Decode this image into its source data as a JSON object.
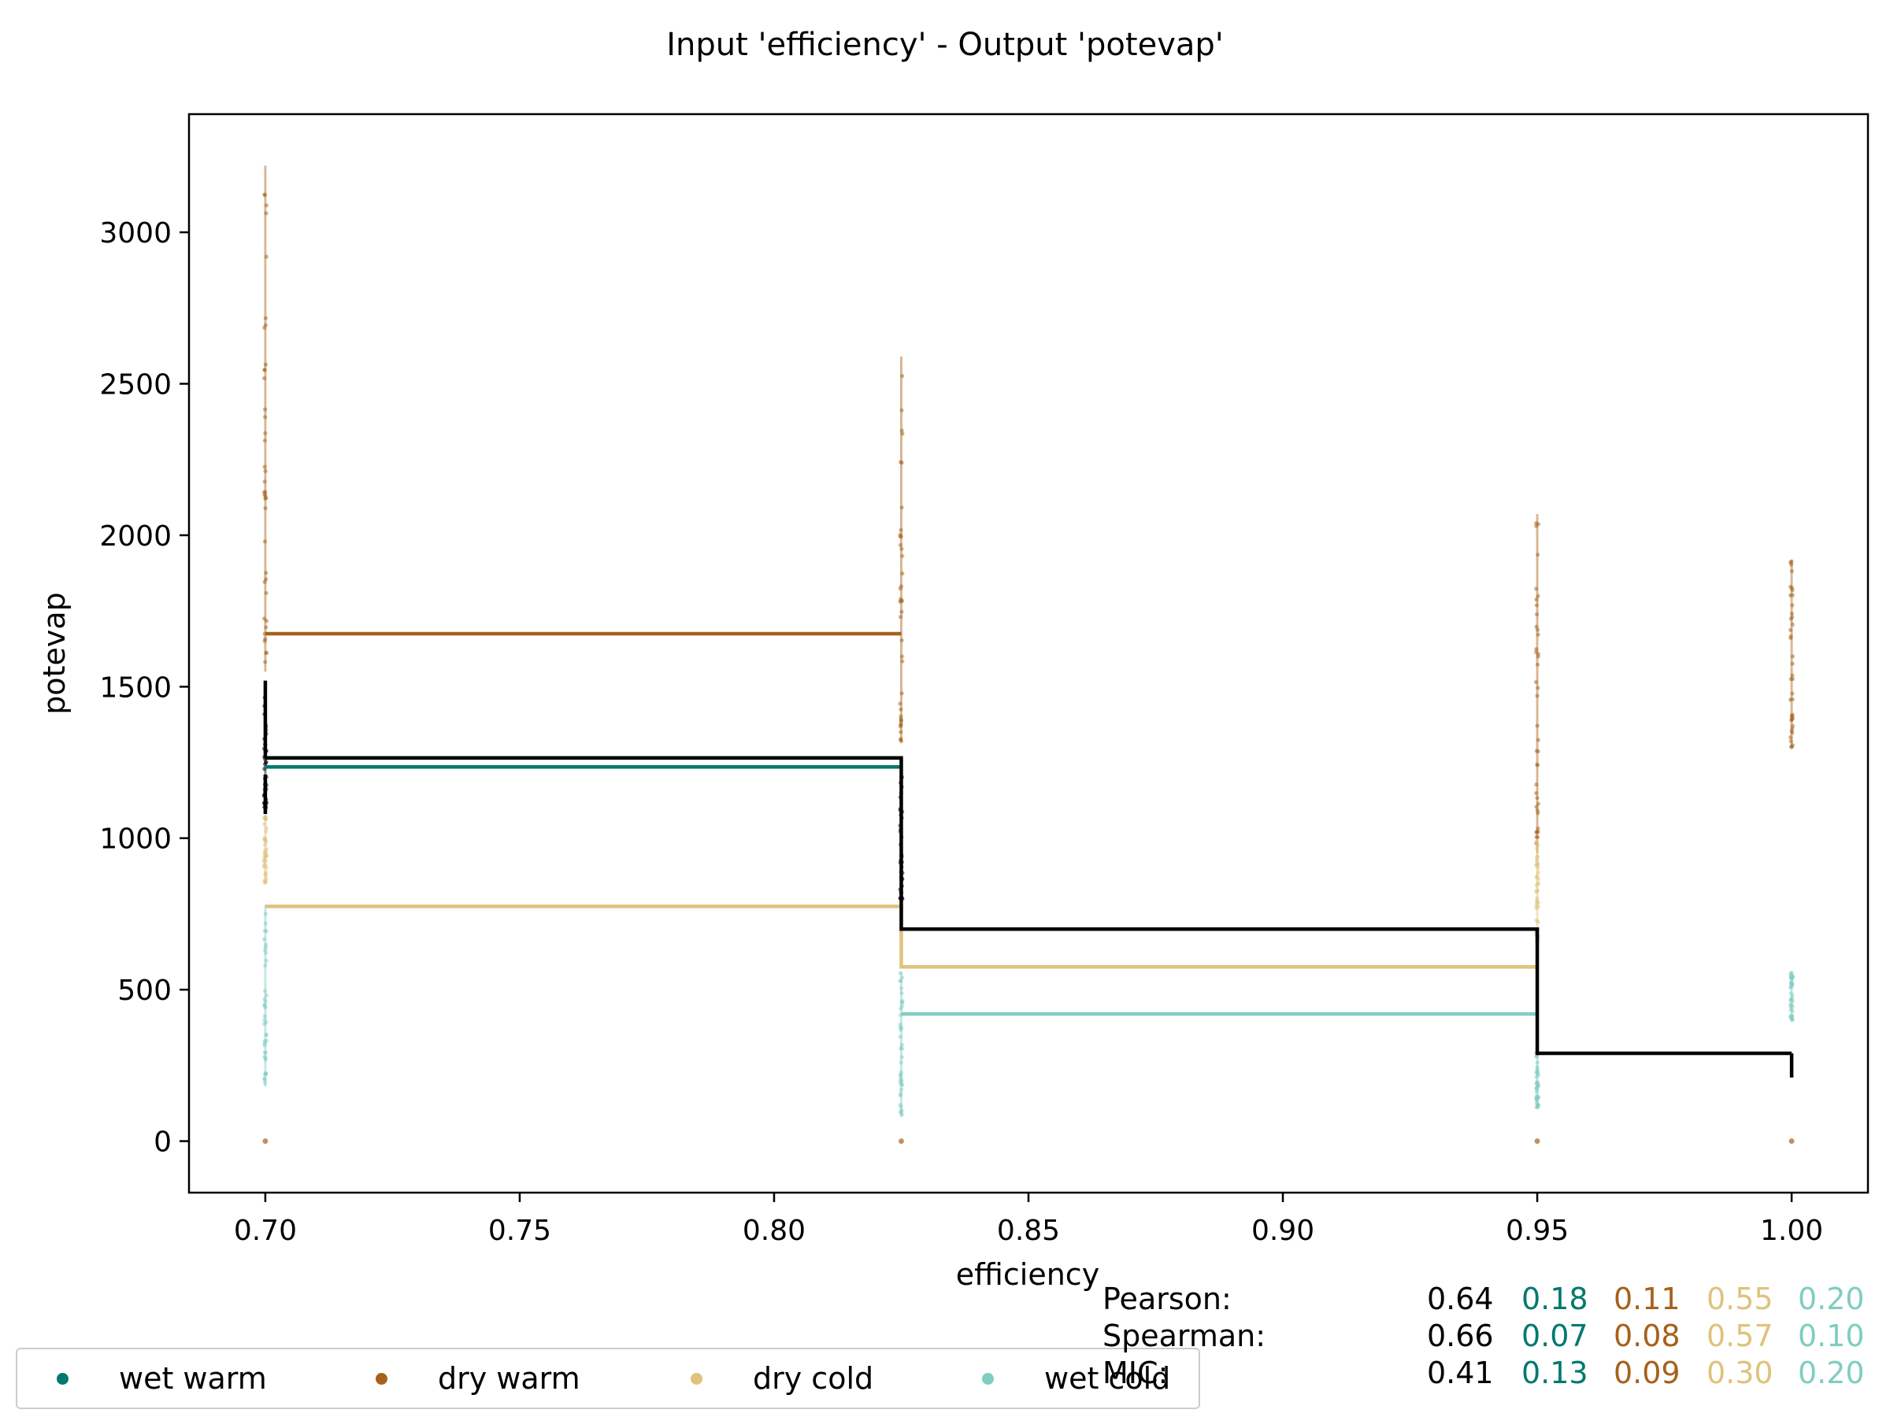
{
  "chart_data": {
    "type": "line",
    "title": "Input 'efficiency' - Output 'potevap'",
    "xlabel": "efficiency",
    "ylabel": "potevap",
    "xlim": [
      0.685,
      1.015
    ],
    "ylim": [
      -170,
      3390
    ],
    "xticks": [
      "0.70",
      "0.75",
      "0.80",
      "0.85",
      "0.90",
      "0.95",
      "1.00"
    ],
    "xtick_values": [
      0.7,
      0.75,
      0.8,
      0.85,
      0.9,
      0.95,
      1.0
    ],
    "yticks": [
      "0",
      "500",
      "1000",
      "1500",
      "2000",
      "2500",
      "3000"
    ],
    "ytick_values": [
      0,
      500,
      1000,
      1500,
      2000,
      2500,
      3000
    ],
    "grid": false,
    "legend_position": "bottom-left, below plot",
    "categories_x": [
      0.7,
      0.825,
      0.95,
      1.0
    ],
    "series": [
      {
        "name": "",
        "color": "#000000",
        "steps": [
          [
            0.7,
            0.825,
            1265
          ],
          [
            0.825,
            0.95,
            700
          ],
          [
            0.95,
            1.0,
            290
          ]
        ]
      },
      {
        "name": "wet warm",
        "color": "#01796f",
        "steps": [
          [
            0.7,
            0.825,
            1235
          ]
        ]
      },
      {
        "name": "dry warm",
        "color": "#a6611a",
        "steps": [
          [
            0.7,
            0.825,
            1675
          ]
        ]
      },
      {
        "name": "dry cold",
        "color": "#dfc27d",
        "steps": [
          [
            0.7,
            0.825,
            775
          ],
          [
            0.825,
            0.95,
            575
          ]
        ]
      },
      {
        "name": "wet cold",
        "color": "#80cdc1",
        "steps": [
          [
            0.825,
            0.95,
            420
          ]
        ]
      }
    ],
    "scatter_ranges": [
      {
        "x": 0.7,
        "color": "#a6611a",
        "min": 1550,
        "max": 3220
      },
      {
        "x": 0.7,
        "color": "#000000",
        "min": 1100,
        "max": 1520
      },
      {
        "x": 0.7,
        "color": "#dfc27d",
        "min": 850,
        "max": 1100
      },
      {
        "x": 0.7,
        "color": "#80cdc1",
        "min": 180,
        "max": 780
      },
      {
        "x": 0.825,
        "color": "#a6611a",
        "min": 1320,
        "max": 2590
      },
      {
        "x": 0.825,
        "color": "#000000",
        "min": 800,
        "max": 1220
      },
      {
        "x": 0.825,
        "color": "#80cdc1",
        "min": 80,
        "max": 560
      },
      {
        "x": 0.95,
        "color": "#a6611a",
        "min": 950,
        "max": 2070
      },
      {
        "x": 0.95,
        "color": "#dfc27d",
        "min": 660,
        "max": 1000
      },
      {
        "x": 0.95,
        "color": "#80cdc1",
        "min": 110,
        "max": 300
      },
      {
        "x": 1.0,
        "color": "#a6611a",
        "min": 1300,
        "max": 1920
      },
      {
        "x": 1.0,
        "color": "#80cdc1",
        "min": 400,
        "max": 560
      }
    ],
    "zero_points": [
      0.7,
      0.825,
      0.95,
      1.0
    ]
  },
  "stats": {
    "rows": [
      {
        "label": "Pearson:",
        "values": [
          "0.64",
          "0.18",
          "0.11",
          "0.55",
          "0.20"
        ]
      },
      {
        "label": "Spearman:",
        "values": [
          "0.66",
          "0.07",
          "0.08",
          "0.57",
          "0.10"
        ]
      },
      {
        "label": "MIC:",
        "values": [
          "0.41",
          "0.13",
          "0.09",
          "0.30",
          "0.20"
        ]
      }
    ],
    "colors": [
      "#000000",
      "#01796f",
      "#a6611a",
      "#dfc27d",
      "#80cdc1"
    ]
  },
  "legend": [
    {
      "label": "wet warm",
      "color": "#01796f"
    },
    {
      "label": "dry warm",
      "color": "#a6611a"
    },
    {
      "label": "dry cold",
      "color": "#dfc27d"
    },
    {
      "label": "wet cold",
      "color": "#80cdc1"
    }
  ]
}
